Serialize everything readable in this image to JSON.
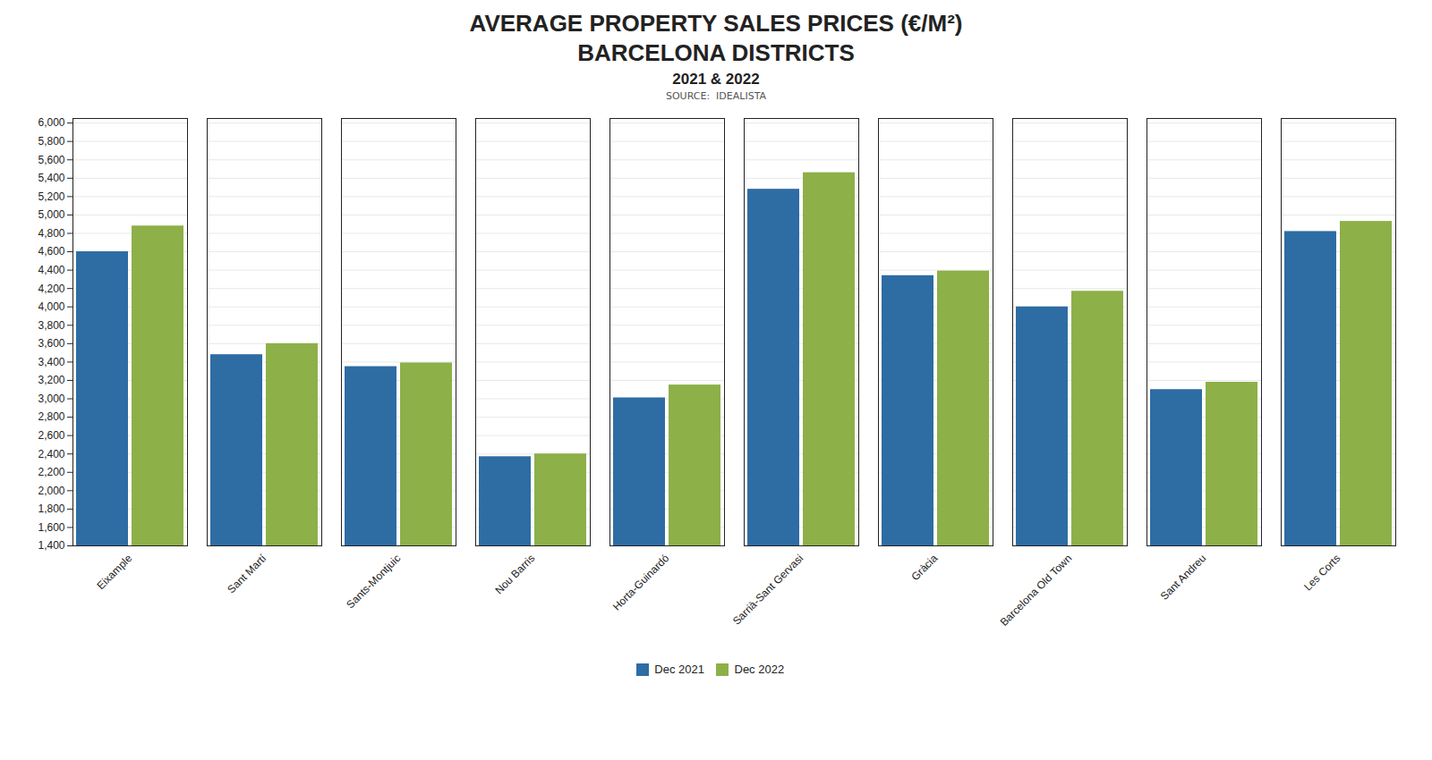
{
  "chart_data": {
    "type": "bar",
    "title": "AVERAGE PROPERTY SALES PRICES (€/M²)\nBARCELONA DISTRICTS",
    "subtitle": "2021 & 2022",
    "annotations": [
      "SOURCE:  IDEALISTA"
    ],
    "categories": [
      "Eixample",
      "Sant Martí",
      "Sants-Montjuic",
      "Nou Barris",
      "Horta-Guinardó",
      "Sarrià-Sant Gervasi",
      "Gràcia",
      "Barcelona Old Town",
      "Sant Andreu",
      "Les Corts"
    ],
    "series": [
      {
        "name": "Dec 2021",
        "color": "#2E6CA4",
        "values": [
          4600,
          3480,
          3350,
          2370,
          3010,
          5280,
          4340,
          4000,
          3100,
          4820
        ]
      },
      {
        "name": "Dec 2022",
        "color": "#8DB048",
        "values": [
          4880,
          3600,
          3390,
          2400,
          3150,
          5460,
          4390,
          4170,
          3180,
          4930
        ]
      }
    ],
    "ylim": [
      1400,
      6050
    ],
    "yticks": [
      {
        "value": 1400,
        "label": "1,400"
      },
      {
        "value": 1600,
        "label": "1,600"
      },
      {
        "value": 1800,
        "label": "1,800"
      },
      {
        "value": 2000,
        "label": "2,000"
      },
      {
        "value": 2200,
        "label": "2,200"
      },
      {
        "value": 2400,
        "label": "2,400"
      },
      {
        "value": 2600,
        "label": "2,600"
      },
      {
        "value": 2800,
        "label": "2,800"
      },
      {
        "value": 3000,
        "label": "3,000"
      },
      {
        "value": 3200,
        "label": "3,200"
      },
      {
        "value": 3400,
        "label": "3,400"
      },
      {
        "value": 3600,
        "label": "3,600"
      },
      {
        "value": 3800,
        "label": "3,800"
      },
      {
        "value": 4000,
        "label": "4,000"
      },
      {
        "value": 4200,
        "label": "4,200"
      },
      {
        "value": 4400,
        "label": "4,400"
      },
      {
        "value": 4600,
        "label": "4,600"
      },
      {
        "value": 4800,
        "label": "4,800"
      },
      {
        "value": 5000,
        "label": "5,000"
      },
      {
        "value": 5200,
        "label": "5,200"
      },
      {
        "value": 5400,
        "label": "5,400"
      },
      {
        "value": 5600,
        "label": "5,600"
      },
      {
        "value": 5800,
        "label": "5,800"
      },
      {
        "value": 6000,
        "label": "6,000"
      }
    ],
    "grid": true,
    "legend": "bottom"
  }
}
